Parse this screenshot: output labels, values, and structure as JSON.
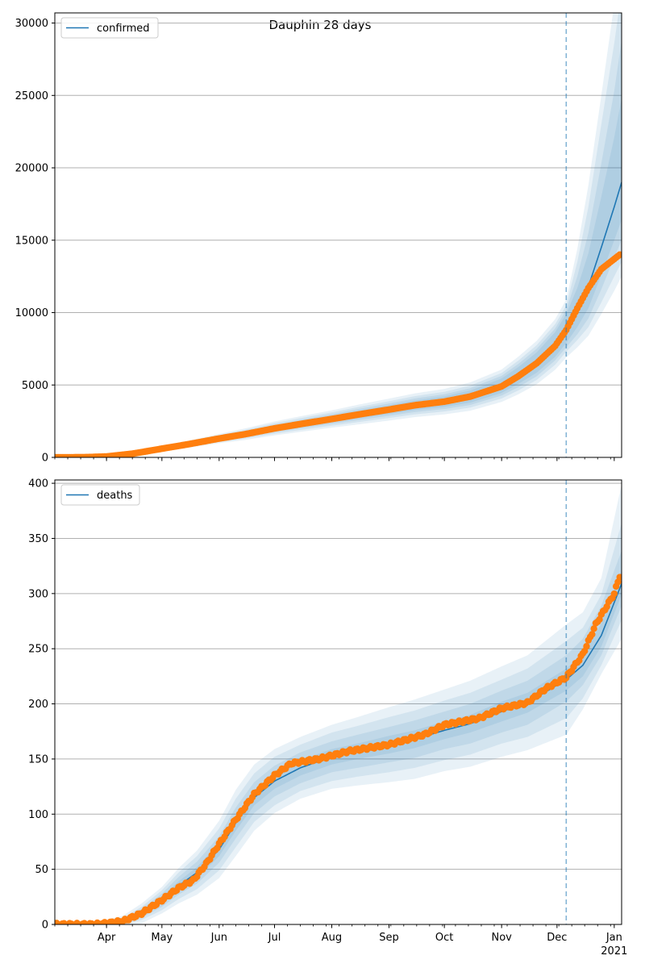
{
  "title": "Dauphin 28 days",
  "colors": {
    "model": "#1f77b4",
    "observed": "#ff7f0e",
    "band": "#1f77b4",
    "grid": "#b0b0b0",
    "vline": "#1f77b4"
  },
  "chart_data": [
    {
      "type": "line",
      "title": "Dauphin 28 days",
      "legend": "confirmed",
      "legend_placement": "top-left",
      "grid": "horizontal",
      "x_axis": {
        "start": "2020-03-04",
        "end": "2021-01-05",
        "ticks": [
          {
            "date": "2020-04-01",
            "label": "Apr"
          },
          {
            "date": "2020-05-01",
            "label": "May"
          },
          {
            "date": "2020-06-01",
            "label": "Jun"
          },
          {
            "date": "2020-07-01",
            "label": "Jul"
          },
          {
            "date": "2020-08-01",
            "label": "Aug"
          },
          {
            "date": "2020-09-01",
            "label": "Sep"
          },
          {
            "date": "2020-10-01",
            "label": "Oct"
          },
          {
            "date": "2020-11-01",
            "label": "Nov"
          },
          {
            "date": "2020-12-01",
            "label": "Dec"
          },
          {
            "date": "2021-01-01",
            "label": "Jan",
            "sublabel": "2021"
          }
        ]
      },
      "ylim": [
        0,
        30700
      ],
      "yticks": [
        0,
        5000,
        10000,
        15000,
        20000,
        25000,
        30000
      ],
      "vline_date": "2020-12-06",
      "observed": {
        "knots": [
          [
            "2020-03-04",
            0
          ],
          [
            "2020-03-20",
            10
          ],
          [
            "2020-04-01",
            60
          ],
          [
            "2020-04-15",
            250
          ],
          [
            "2020-05-01",
            600
          ],
          [
            "2020-05-15",
            900
          ],
          [
            "2020-06-01",
            1300
          ],
          [
            "2020-06-15",
            1600
          ],
          [
            "2020-07-01",
            2000
          ],
          [
            "2020-07-15",
            2300
          ],
          [
            "2020-08-01",
            2650
          ],
          [
            "2020-08-15",
            2950
          ],
          [
            "2020-09-01",
            3300
          ],
          [
            "2020-09-15",
            3600
          ],
          [
            "2020-10-01",
            3850
          ],
          [
            "2020-10-15",
            4200
          ],
          [
            "2020-11-01",
            4900
          ],
          [
            "2020-11-10",
            5600
          ],
          [
            "2020-11-20",
            6500
          ],
          [
            "2020-11-30",
            7700
          ],
          [
            "2020-12-06",
            8800
          ],
          [
            "2020-12-12",
            10300
          ],
          [
            "2020-12-18",
            11700
          ],
          [
            "2020-12-25",
            13000
          ],
          [
            "2021-01-04",
            14000
          ]
        ]
      },
      "model": {
        "knots": [
          [
            "2020-03-04",
            0
          ],
          [
            "2020-03-20",
            10
          ],
          [
            "2020-04-01",
            60
          ],
          [
            "2020-04-15",
            250
          ],
          [
            "2020-05-01",
            600
          ],
          [
            "2020-05-15",
            900
          ],
          [
            "2020-06-01",
            1300
          ],
          [
            "2020-06-15",
            1600
          ],
          [
            "2020-07-01",
            2000
          ],
          [
            "2020-07-15",
            2300
          ],
          [
            "2020-08-01",
            2650
          ],
          [
            "2020-08-15",
            2950
          ],
          [
            "2020-09-01",
            3300
          ],
          [
            "2020-09-15",
            3600
          ],
          [
            "2020-10-01",
            3850
          ],
          [
            "2020-10-15",
            4200
          ],
          [
            "2020-11-01",
            4950
          ],
          [
            "2020-11-10",
            5650
          ],
          [
            "2020-11-20",
            6550
          ],
          [
            "2020-11-30",
            7800
          ],
          [
            "2020-12-06",
            8900
          ],
          [
            "2020-12-12",
            10200
          ],
          [
            "2020-12-18",
            11800
          ],
          [
            "2020-12-25",
            14500
          ],
          [
            "2021-01-01",
            17300
          ],
          [
            "2021-01-05",
            19000
          ]
        ],
        "bands": [
          {
            "upper_offset": [
              0,
              5,
              10,
              20,
              40,
              60,
              90,
              120,
              160,
              190,
              220,
              260,
              300,
              330,
              360,
              420,
              500,
              580,
              700,
              850,
              1000,
              1500,
              2300,
              3500,
              4800,
              5800
            ],
            "lower_offset": [
              0,
              5,
              10,
              20,
              40,
              60,
              90,
              120,
              160,
              190,
              220,
              260,
              300,
              330,
              360,
              420,
              500,
              580,
              700,
              850,
              1000,
              1200,
              1500,
              1900,
              2300,
              2600
            ]
          },
          {
            "upper_offset": [
              0,
              10,
              20,
              40,
              80,
              120,
              160,
              200,
              250,
              290,
              330,
              380,
              430,
              470,
              510,
              580,
              680,
              800,
              950,
              1100,
              1300,
              2300,
              3700,
              5800,
              8000,
              9800
            ],
            "lower_offset": [
              0,
              10,
              20,
              40,
              80,
              120,
              160,
              200,
              250,
              290,
              330,
              380,
              430,
              470,
              510,
              580,
              680,
              800,
              950,
              1100,
              1300,
              1700,
              2200,
              2900,
              3500,
              4000
            ]
          },
          {
            "upper_offset": [
              0,
              15,
              30,
              60,
              120,
              180,
              240,
              300,
              360,
              410,
              460,
              520,
              580,
              630,
              680,
              760,
              880,
              1030,
              1200,
              1400,
              1600,
              3300,
              5500,
              8500,
              11300,
              13200
            ],
            "lower_offset": [
              0,
              15,
              30,
              60,
              120,
              180,
              240,
              300,
              360,
              410,
              460,
              520,
              580,
              630,
              680,
              760,
              880,
              1030,
              1200,
              1400,
              1600,
              2100,
              2800,
              3800,
              4800,
              5500
            ]
          },
          {
            "upper_offset": [
              0,
              20,
              40,
              80,
              160,
              240,
              320,
              400,
              480,
              540,
              600,
              680,
              760,
              820,
              880,
              980,
              1120,
              1300,
              1500,
              1750,
              2000,
              4200,
              7000,
              10500,
              14000,
              15500
            ],
            "lower_offset": [
              0,
              20,
              40,
              80,
              160,
              240,
              320,
              400,
              480,
              540,
              600,
              680,
              760,
              820,
              880,
              980,
              1120,
              1300,
              1500,
              1750,
              2000,
              2600,
              3400,
              4600,
              5800,
              6500
            ]
          }
        ]
      }
    },
    {
      "type": "line",
      "legend": "deaths",
      "legend_placement": "top-left",
      "grid": "horizontal",
      "ylim": [
        0,
        403
      ],
      "yticks": [
        0,
        50,
        100,
        150,
        200,
        250,
        300,
        350,
        400
      ],
      "vline_date": "2020-12-06",
      "observed": {
        "knots": [
          [
            "2020-03-04",
            0
          ],
          [
            "2020-03-25",
            0
          ],
          [
            "2020-04-01",
            1
          ],
          [
            "2020-04-10",
            3
          ],
          [
            "2020-04-20",
            10
          ],
          [
            "2020-05-01",
            22
          ],
          [
            "2020-05-10",
            33
          ],
          [
            "2020-05-18",
            40
          ],
          [
            "2020-05-25",
            55
          ],
          [
            "2020-06-01",
            73
          ],
          [
            "2020-06-10",
            95
          ],
          [
            "2020-06-20",
            118
          ],
          [
            "2020-07-01",
            135
          ],
          [
            "2020-07-10",
            146
          ],
          [
            "2020-07-25",
            150
          ],
          [
            "2020-08-10",
            157
          ],
          [
            "2020-09-01",
            163
          ],
          [
            "2020-09-20",
            172
          ],
          [
            "2020-10-01",
            181
          ],
          [
            "2020-10-20",
            187
          ],
          [
            "2020-11-01",
            196
          ],
          [
            "2020-11-15",
            201
          ],
          [
            "2020-11-25",
            214
          ],
          [
            "2020-12-06",
            224
          ],
          [
            "2020-12-15",
            245
          ],
          [
            "2020-12-22",
            272
          ],
          [
            "2021-01-01",
            300
          ],
          [
            "2021-01-04",
            316
          ]
        ]
      },
      "model": {
        "knots": [
          [
            "2020-03-04",
            0
          ],
          [
            "2020-03-25",
            0
          ],
          [
            "2020-04-01",
            1
          ],
          [
            "2020-04-10",
            3
          ],
          [
            "2020-04-20",
            10
          ],
          [
            "2020-05-01",
            22
          ],
          [
            "2020-05-10",
            35
          ],
          [
            "2020-05-20",
            47
          ],
          [
            "2020-06-01",
            68
          ],
          [
            "2020-06-10",
            92
          ],
          [
            "2020-06-20",
            115
          ],
          [
            "2020-07-01",
            130
          ],
          [
            "2020-07-15",
            142
          ],
          [
            "2020-08-01",
            152
          ],
          [
            "2020-08-15",
            157
          ],
          [
            "2020-09-01",
            163
          ],
          [
            "2020-09-15",
            168
          ],
          [
            "2020-10-01",
            176
          ],
          [
            "2020-10-15",
            182
          ],
          [
            "2020-11-01",
            193
          ],
          [
            "2020-11-15",
            201
          ],
          [
            "2020-12-06",
            222
          ],
          [
            "2020-12-15",
            235
          ],
          [
            "2020-12-25",
            262
          ],
          [
            "2021-01-05",
            309
          ]
        ],
        "bands": [
          {
            "upper_offset": [
              0,
              0,
              0,
              1,
              2,
              3,
              4,
              5,
              6,
              7,
              7,
              7,
              7,
              7,
              7,
              8,
              8,
              8,
              8,
              9,
              9,
              10,
              10,
              11,
              12
            ],
            "lower_offset": [
              0,
              0,
              0,
              1,
              2,
              3,
              4,
              5,
              6,
              7,
              7,
              7,
              7,
              7,
              7,
              8,
              8,
              8,
              8,
              9,
              9,
              10,
              10,
              10,
              10
            ]
          },
          {
            "upper_offset": [
              0,
              0,
              1,
              2,
              4,
              6,
              8,
              10,
              12,
              14,
              14,
              14,
              14,
              14,
              15,
              16,
              17,
              17,
              18,
              19,
              20,
              22,
              24,
              27,
              30
            ],
            "lower_offset": [
              0,
              0,
              1,
              2,
              4,
              6,
              8,
              10,
              12,
              14,
              14,
              14,
              14,
              14,
              15,
              16,
              17,
              17,
              18,
              19,
              20,
              20,
              18,
              18,
              20
            ]
          },
          {
            "upper_offset": [
              0,
              0,
              2,
              3,
              6,
              9,
              12,
              15,
              19,
              22,
              22,
              22,
              21,
              22,
              23,
              25,
              26,
              27,
              28,
              29,
              31,
              35,
              34,
              37,
              55
            ],
            "lower_offset": [
              0,
              0,
              1,
              3,
              6,
              9,
              12,
              15,
              19,
              22,
              22,
              22,
              21,
              22,
              23,
              25,
              26,
              27,
              28,
              29,
              31,
              35,
              30,
              27,
              33
            ]
          },
          {
            "upper_offset": [
              0,
              1,
              3,
              5,
              9,
              12,
              16,
              20,
              26,
              30,
              30,
              29,
              28,
              29,
              31,
              34,
              36,
              37,
              39,
              41,
              43,
              50,
              48,
              52,
              90
            ],
            "lower_offset": [
              0,
              0,
              1,
              3,
              9,
              12,
              16,
              20,
              26,
              30,
              30,
              29,
              28,
              29,
              31,
              34,
              36,
              37,
              39,
              41,
              43,
              50,
              40,
              35,
              50
            ]
          }
        ]
      }
    }
  ]
}
